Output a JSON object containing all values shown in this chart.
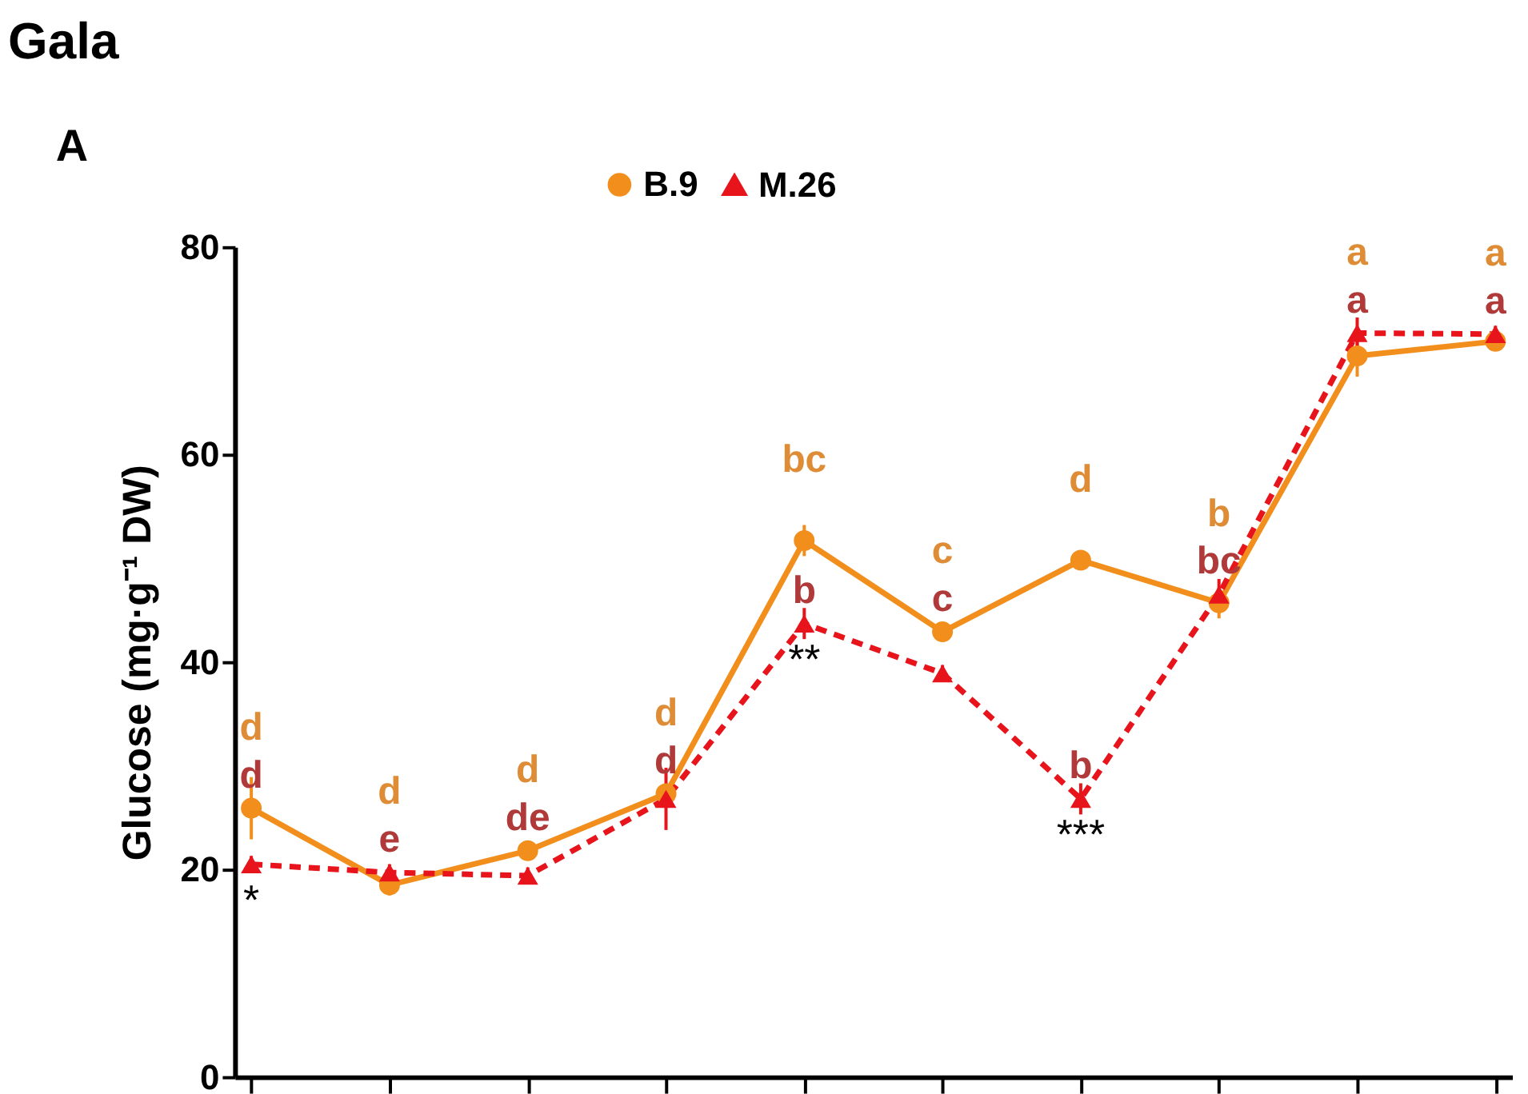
{
  "chart_data": {
    "type": "line",
    "title": "Gala",
    "ylabel": "Glucose (mg·g⁻¹ DW)",
    "categories": [
      null,
      null,
      null,
      null,
      null,
      null,
      null,
      null,
      null,
      null
    ],
    "ylim": [
      0,
      80
    ],
    "yticks": [
      0,
      20,
      40,
      60,
      80
    ],
    "tick_labels": "y",
    "grid": false,
    "legend": "top",
    "series": [
      {
        "name": "B.9",
        "color": "#f28e1c",
        "marker": "circle",
        "line_style": "solid",
        "values": [
          25.9,
          18.5,
          21.8,
          27.3,
          51.7,
          42.9,
          49.8,
          45.7,
          69.5,
          70.9
        ],
        "errors": [
          3,
          1,
          0.8,
          1,
          1.5,
          0.8,
          0.8,
          1.5,
          2,
          0.8
        ],
        "value_labels": [
          "d",
          "d",
          "d",
          "d",
          "bc",
          "c",
          "d",
          "b",
          "a",
          "a"
        ]
      },
      {
        "name": "M.26",
        "color": "#e8141c",
        "marker": "triangle",
        "line_style": "dashed",
        "values": [
          20.5,
          19.7,
          19.4,
          26.8,
          43.7,
          38.9,
          26.8,
          46.5,
          71.7,
          71.6
        ],
        "errors": [
          0.8,
          0.8,
          0.8,
          3,
          1.5,
          0.8,
          1.5,
          1.5,
          1.5,
          0.8
        ],
        "value_labels": [
          "d",
          "e",
          "de",
          "d",
          "b",
          "c",
          "b",
          "bc",
          "a",
          "a"
        ]
      }
    ],
    "annotations": [
      "A",
      "*",
      "**",
      "***"
    ]
  }
}
